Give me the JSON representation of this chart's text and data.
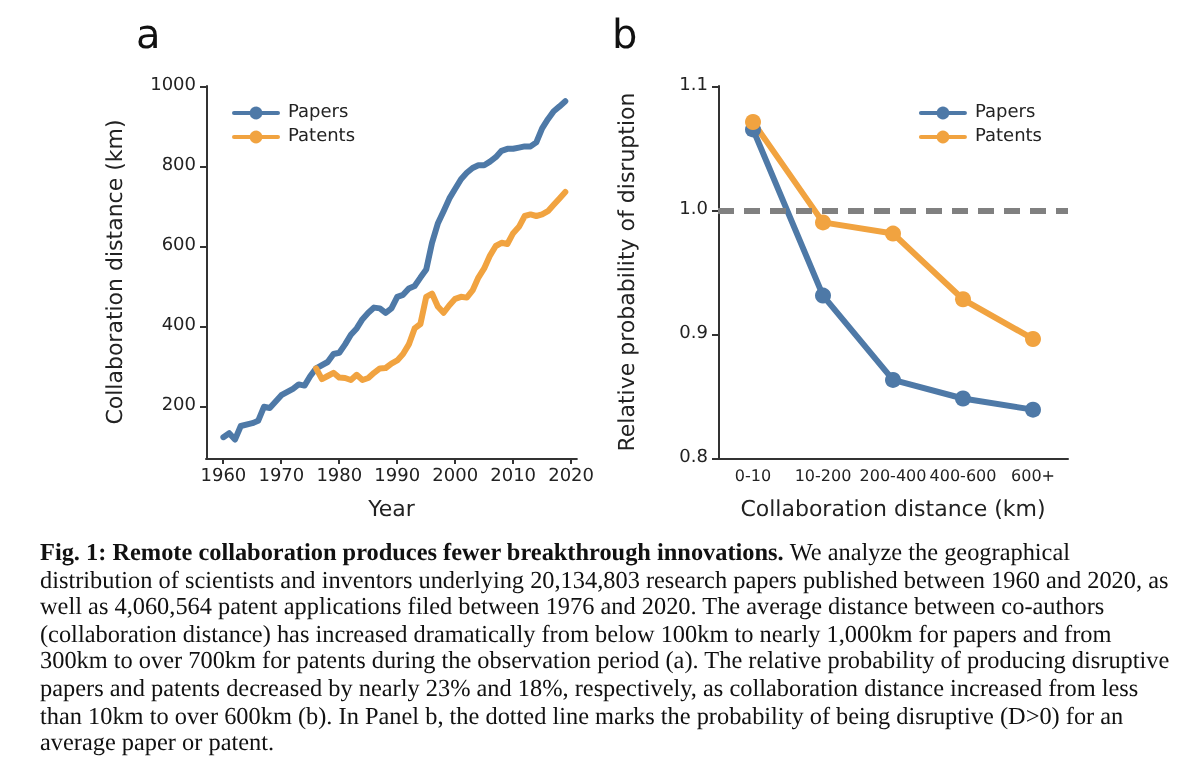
{
  "chart_data": [
    {
      "type": "line",
      "title": "a",
      "xlabel": "Year",
      "ylabel": "Collaboration distance (km)",
      "xlim": [
        1957,
        2021
      ],
      "xticks": [
        1960,
        1970,
        1980,
        1990,
        2000,
        2010,
        2020
      ],
      "ylim": [
        70,
        1000
      ],
      "yticks": [
        200,
        400,
        600,
        800,
        1000
      ],
      "grid": false,
      "legend": "top left",
      "marker": "none",
      "line_style": "solid",
      "series": [
        {
          "name": "Papers",
          "color": "#4e79a7",
          "x": [
            1960,
            1961,
            1962,
            1963,
            1965,
            1966,
            1967,
            1968,
            1970,
            1972,
            1973,
            1974,
            1975,
            1976,
            1978,
            1979,
            1980,
            1981,
            1982,
            1983,
            1984,
            1985,
            1986,
            1987,
            1988,
            1989,
            1990,
            1991,
            1992,
            1993,
            1994,
            1995,
            1996,
            1997,
            1998,
            1999,
            2000,
            2001,
            2002,
            2003,
            2004,
            2005,
            2006,
            2007,
            2008,
            2009,
            2010,
            2011,
            2012,
            2013,
            2014,
            2015,
            2016,
            2017,
            2018,
            2019
          ],
          "values": [
            122,
            132,
            116,
            150,
            157,
            163,
            198,
            195,
            227,
            243,
            254,
            251,
            275,
            294,
            310,
            330,
            333,
            354,
            378,
            394,
            417,
            433,
            446,
            444,
            433,
            444,
            473,
            478,
            494,
            500,
            521,
            541,
            608,
            656,
            687,
            719,
            743,
            767,
            783,
            795,
            802,
            802,
            811,
            822,
            838,
            843,
            843,
            846,
            849,
            849,
            859,
            894,
            917,
            937,
            949,
            962
          ]
        },
        {
          "name": "Patents",
          "color": "#f1a340",
          "x": [
            1976,
            1977,
            1978,
            1979,
            1980,
            1981,
            1982,
            1983,
            1984,
            1985,
            1986,
            1987,
            1988,
            1989,
            1990,
            1991,
            1992,
            1993,
            1994,
            1995,
            1996,
            1997,
            1998,
            1999,
            2000,
            2001,
            2002,
            2003,
            2004,
            2005,
            2006,
            2007,
            2008,
            2009,
            2010,
            2011,
            2012,
            2013,
            2014,
            2015,
            2016,
            2017,
            2018,
            2019
          ],
          "values": [
            294,
            267,
            275,
            283,
            271,
            270,
            265,
            278,
            265,
            270,
            283,
            294,
            295,
            306,
            314,
            330,
            354,
            394,
            405,
            473,
            481,
            449,
            433,
            452,
            468,
            473,
            471,
            489,
            521,
            544,
            576,
            600,
            608,
            605,
            632,
            648,
            675,
            679,
            675,
            679,
            687,
            703,
            719,
            735
          ]
        }
      ],
      "annotations": [
        "Fig. 1: Remote collaboration produces fewer breakthrough innovations.",
        "We analyze the geographical distribution of scientists and inventors underlying 20,134,803 research papers published between 1960 and 2020, as well as 4,060,564 patent applications filed between 1976 and 2020. The average distance between co-authors (collaboration distance) has increased dramatically  from below 100km to nearly 1,000km for papers and from 300km to over 700km for patents during the observation period (a). The relative probability of producing disruptive papers and patents decreased by nearly 23% and 18%, respectively, as collaboration distance increased from less than 10km to over 600km (b). In Panel b, the dotted line marks the probability of being disruptive (D>0) for an average paper or patent."
      ]
    },
    {
      "type": "line",
      "title": "b",
      "xlabel": "Collaboration distance (km)",
      "ylabel": "Relative probability of disruption",
      "categories": [
        "0-10",
        "10-200",
        "200-400",
        "400-600",
        "600+"
      ],
      "ylim": [
        0.8,
        1.1
      ],
      "yticks": [
        0.8,
        0.9,
        {
          "value": 1.0,
          "label": "1.0"
        },
        1.1
      ],
      "grid": false,
      "legend": "top right",
      "marker": "circle",
      "line_style": "solid",
      "series": [
        {
          "name": "Papers",
          "color": "#4e79a7",
          "values": [
            1.065,
            0.931,
            0.863,
            0.848,
            0.839
          ]
        },
        {
          "name": "Patents",
          "color": "#f1a340",
          "values": [
            1.071,
            0.99,
            0.981,
            0.928,
            0.896
          ]
        }
      ],
      "ref_lines": [
        {
          "axis": "y",
          "value": 1.0,
          "color": "#808080",
          "line_style": "dashed"
        }
      ]
    }
  ]
}
